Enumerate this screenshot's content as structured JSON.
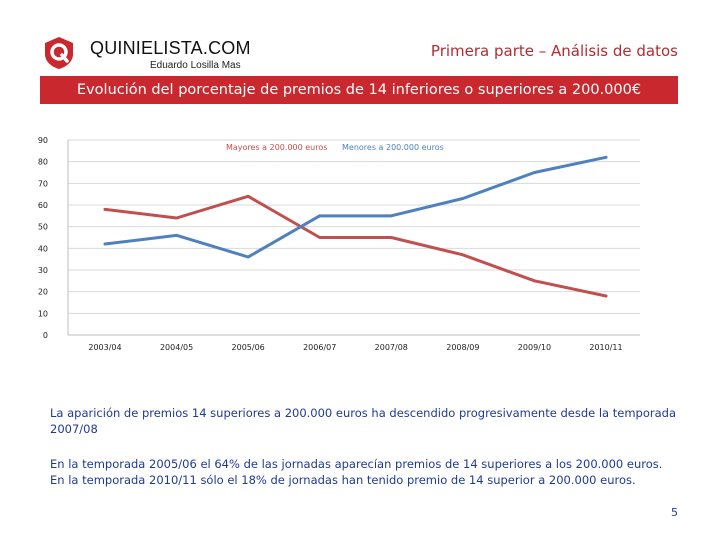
{
  "header": {
    "brand": "QUINIELISTA.COM",
    "author": "Eduardo Losilla Mas",
    "section": "Primera parte – Análisis de datos",
    "banner": "Evolución del porcentaje de premios de 14 inferiores o superiores a 200.000€"
  },
  "colors": {
    "banner_bg": "#c8282e",
    "series_mayores": "#c0504d",
    "series_menores": "#4f81bd",
    "text_blue": "#1f3a93"
  },
  "chart_data": {
    "type": "line",
    "categories": [
      "2003/04",
      "2004/05",
      "2005/06",
      "2006/07",
      "2007/08",
      "2008/09",
      "2009/10",
      "2010/11"
    ],
    "series": [
      {
        "name": "Mayores a 200.000 euros",
        "values": [
          58,
          54,
          64,
          45,
          45,
          37,
          25,
          18
        ]
      },
      {
        "name": "Menores a 200.000 euros",
        "values": [
          42,
          46,
          36,
          55,
          55,
          63,
          75,
          82
        ]
      }
    ],
    "yticks": [
      0,
      10,
      20,
      30,
      40,
      50,
      60,
      70,
      80,
      90
    ],
    "ylim": [
      0,
      90
    ],
    "grid": true,
    "legend": "top-center",
    "title": "",
    "xlabel": "",
    "ylabel": ""
  },
  "text": {
    "para1": "La aparición de premios 14 superiores a 200.000 euros ha descendido progresivamente desde la temporada 2007/08",
    "para2": "En la temporada 2005/06 el 64% de las jornadas aparecían premios de 14 superiores a los 200.000 euros.",
    "para3": "En la temporada 2010/11 sólo el 18% de jornadas han tenido premio de 14 superior a 200.000 euros."
  },
  "page_number": "5"
}
